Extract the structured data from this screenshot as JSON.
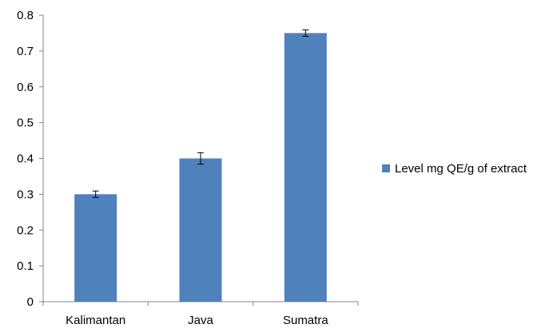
{
  "chart_data": {
    "type": "bar",
    "categories": [
      "Kalimantan",
      "Java",
      "Sumatra"
    ],
    "series": [
      {
        "name": "Level mg QE/g of extract",
        "values": [
          0.3,
          0.4,
          0.75
        ],
        "error": [
          0.009,
          0.016,
          0.009
        ],
        "color": "#4F81BD"
      }
    ],
    "ylim": [
      0,
      0.8
    ],
    "yticks": [
      "0",
      "0.1",
      "0.2",
      "0.3",
      "0.4",
      "0.5",
      "0.6",
      "0.7",
      "0.8"
    ],
    "title": "",
    "xlabel": "",
    "ylabel": "",
    "grid": false,
    "legend_position": "right"
  }
}
